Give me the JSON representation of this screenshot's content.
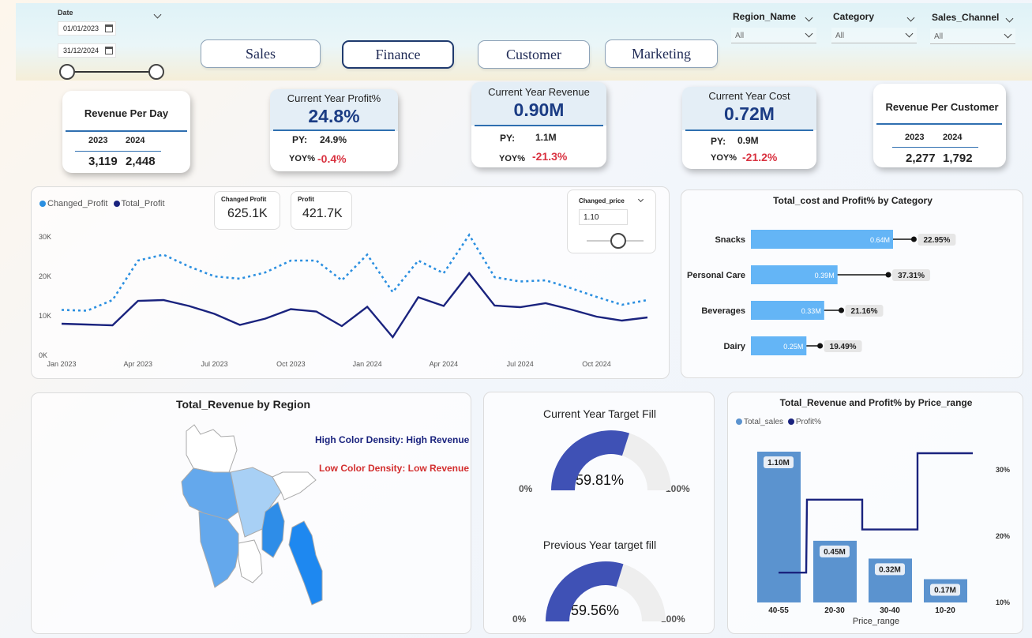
{
  "filters": {
    "date": {
      "label": "Date",
      "start": "01/01/2023",
      "end": "31/12/2024"
    },
    "region": {
      "label": "Region_Name",
      "value": "All"
    },
    "category": {
      "label": "Category",
      "value": "All"
    },
    "channel": {
      "label": "Sales_Channel",
      "value": "All"
    }
  },
  "nav": [
    "Sales",
    "Finance",
    "Customer",
    "Marketing"
  ],
  "kpis": {
    "revenue_per_day": {
      "title": "Revenue Per Day",
      "y1": "2023",
      "y2": "2024",
      "v1": "3,119",
      "v2": "2,448"
    },
    "profit_pct": {
      "title": "Current Year Profit%",
      "value": "24.8%",
      "py_label": "PY:",
      "py": "24.9%",
      "yoy_label": "YOY%",
      "yoy": "-0.4%"
    },
    "revenue": {
      "title": "Current Year Revenue",
      "value": "0.90M",
      "py_label": "PY:",
      "py": "1.1M",
      "yoy_label": "YOY%",
      "yoy": "-21.3%"
    },
    "cost": {
      "title": "Current Year Cost",
      "value": "0.72M",
      "py_label": "PY:",
      "py": "0.9M",
      "yoy_label": "YOY%",
      "yoy": "-21.2%"
    },
    "revenue_per_customer": {
      "title": "Revenue Per Customer",
      "y1": "2023",
      "y2": "2024",
      "v1": "2,277",
      "v2": "1,792"
    }
  },
  "profit_panel": {
    "legend": [
      "Changed_Profit",
      "Total_Profit"
    ],
    "changed_profit_label": "Changed Profit",
    "changed_profit_value": "625.1K",
    "profit_label": "Profit",
    "profit_value": "421.7K",
    "param_label": "Changed_price",
    "param_value": "1.10"
  },
  "region_panel": {
    "title": "Total_Revenue by Region",
    "note_high": "High Color Density: High Revenue",
    "note_low": "Low Color Density: Low Revenue"
  },
  "gauges": [
    {
      "title": "Current Year Target Fill",
      "value": "59.81%",
      "fill": 0.5981,
      "min": "0%",
      "max": "100%"
    },
    {
      "title": "Previous Year target fill",
      "value": "59.56%",
      "fill": 0.5956,
      "min": "0%",
      "max": "100%"
    }
  ],
  "colors": {
    "accent": "#1b3c84",
    "dotted_line": "#2b8fe0",
    "solid_line": "#1a237e",
    "bar_light": "#64b5f6",
    "bar_price": "#5b93cf",
    "gauge": "#3f51b5",
    "negative": "#d93240"
  },
  "chart_data": [
    {
      "type": "line",
      "title": "",
      "x": [
        "Jan 2023",
        "Feb 2023",
        "Mar 2023",
        "Apr 2023",
        "May 2023",
        "Jun 2023",
        "Jul 2023",
        "Aug 2023",
        "Sep 2023",
        "Oct 2023",
        "Nov 2023",
        "Dec 2023",
        "Jan 2024",
        "Feb 2024",
        "Mar 2024",
        "Apr 2024",
        "May 2024",
        "Jun 2024",
        "Jul 2024",
        "Aug 2024",
        "Sep 2024",
        "Oct 2024",
        "Nov 2024",
        "Dec 2024"
      ],
      "x_ticks": [
        "Jan 2023",
        "Apr 2023",
        "Jul 2023",
        "Oct 2023",
        "Jan 2024",
        "Apr 2024",
        "Jul 2024",
        "Oct 2024"
      ],
      "y_ticks": [
        "0K",
        "10K",
        "20K",
        "30K"
      ],
      "ylim": [
        0,
        30000
      ],
      "series": [
        {
          "name": "Changed_Profit",
          "style": "dotted",
          "values": [
            11500,
            11300,
            14000,
            24000,
            25500,
            22500,
            20000,
            19400,
            21000,
            24000,
            24000,
            19000,
            25500,
            16000,
            24000,
            20800,
            30500,
            19800,
            18700,
            19000,
            17000,
            14800,
            12800,
            14000
          ]
        },
        {
          "name": "Total_Profit",
          "style": "solid",
          "values": [
            8000,
            7800,
            7600,
            13800,
            14000,
            12500,
            10500,
            7700,
            9300,
            11700,
            11100,
            7400,
            12300,
            4600,
            14700,
            12500,
            20800,
            12600,
            12200,
            13200,
            11600,
            9800,
            8800,
            9600
          ]
        }
      ]
    },
    {
      "type": "bar",
      "title": "Total_cost and Profit% by Category",
      "categories": [
        "Snacks",
        "Personal Care",
        "Beverages",
        "Dairy"
      ],
      "series": [
        {
          "name": "Total_cost",
          "values": [
            0.64,
            0.39,
            0.33,
            0.25
          ],
          "labels": [
            "0.64M",
            "0.39M",
            "0.33M",
            "0.25M"
          ]
        },
        {
          "name": "Profit%",
          "values": [
            22.95,
            37.31,
            21.16,
            19.49
          ],
          "labels": [
            "22.95%",
            "37.31%",
            "21.16%",
            "19.49%"
          ]
        }
      ]
    },
    {
      "type": "bar",
      "title": "Total_Revenue and Profit% by Price_range",
      "xlabel": "Price_range",
      "categories": [
        "40-55",
        "20-30",
        "30-40",
        "10-20"
      ],
      "legend": [
        "Total_sales",
        "Profit%"
      ],
      "y2_ticks": [
        "30%",
        "20%",
        "10%"
      ],
      "series": [
        {
          "name": "Total_sales",
          "values": [
            1.1,
            0.45,
            0.32,
            0.17
          ],
          "labels": [
            "1.10M",
            "0.45M",
            "0.32M",
            "0.17M"
          ]
        },
        {
          "name": "Profit%",
          "values": [
            14.5,
            25.5,
            21.0,
            32.5
          ]
        }
      ]
    }
  ]
}
